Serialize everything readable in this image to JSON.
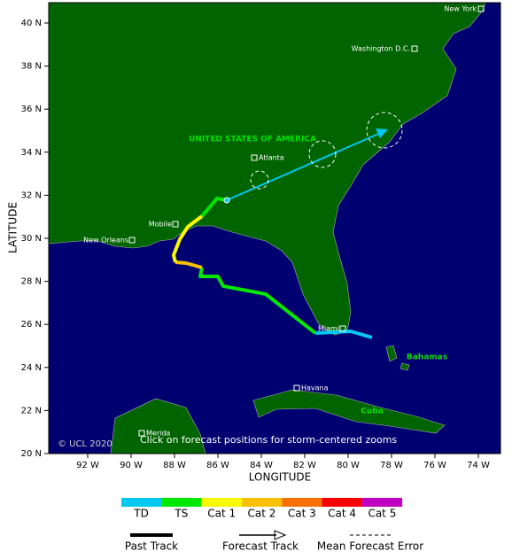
{
  "map": {
    "lat_ticks": [
      "40 N",
      "38 N",
      "36 N",
      "34 N",
      "32 N",
      "30 N",
      "28 N",
      "26 N",
      "24 N",
      "22 N",
      "20 N"
    ],
    "lon_ticks": [
      "92 W",
      "90 W",
      "88 W",
      "86 W",
      "84 W",
      "82 W",
      "80 W",
      "78 W",
      "76 W",
      "74 W"
    ],
    "y_axis_title": "LATITUDE",
    "x_axis_title": "LONGITUDE",
    "cities": [
      "New York",
      "Washington D.C.",
      "Atlanta",
      "Mobile",
      "New Orleans",
      "Miami",
      "Havana",
      "Merida"
    ],
    "countries": [
      "UNITED STATES OF AMERICA",
      "Bahamas",
      "Cuba"
    ],
    "copyright": "© UCL 2020",
    "hint": "Click on forecast positions for storm-centered zooms"
  },
  "legend": {
    "categories": [
      {
        "label": "TD",
        "color": "#00c8f0"
      },
      {
        "label": "TS",
        "color": "#00e800"
      },
      {
        "label": "Cat 1",
        "color": "#f8f800"
      },
      {
        "label": "Cat 2",
        "color": "#f8c000"
      },
      {
        "label": "Cat 3",
        "color": "#f87000"
      },
      {
        "label": "Cat 4",
        "color": "#f80000"
      },
      {
        "label": "Cat 5",
        "color": "#c000c0"
      }
    ],
    "past_track": "Past Track",
    "forecast_track": "Forecast Track",
    "mean_error": "Mean Forecast Error"
  }
}
